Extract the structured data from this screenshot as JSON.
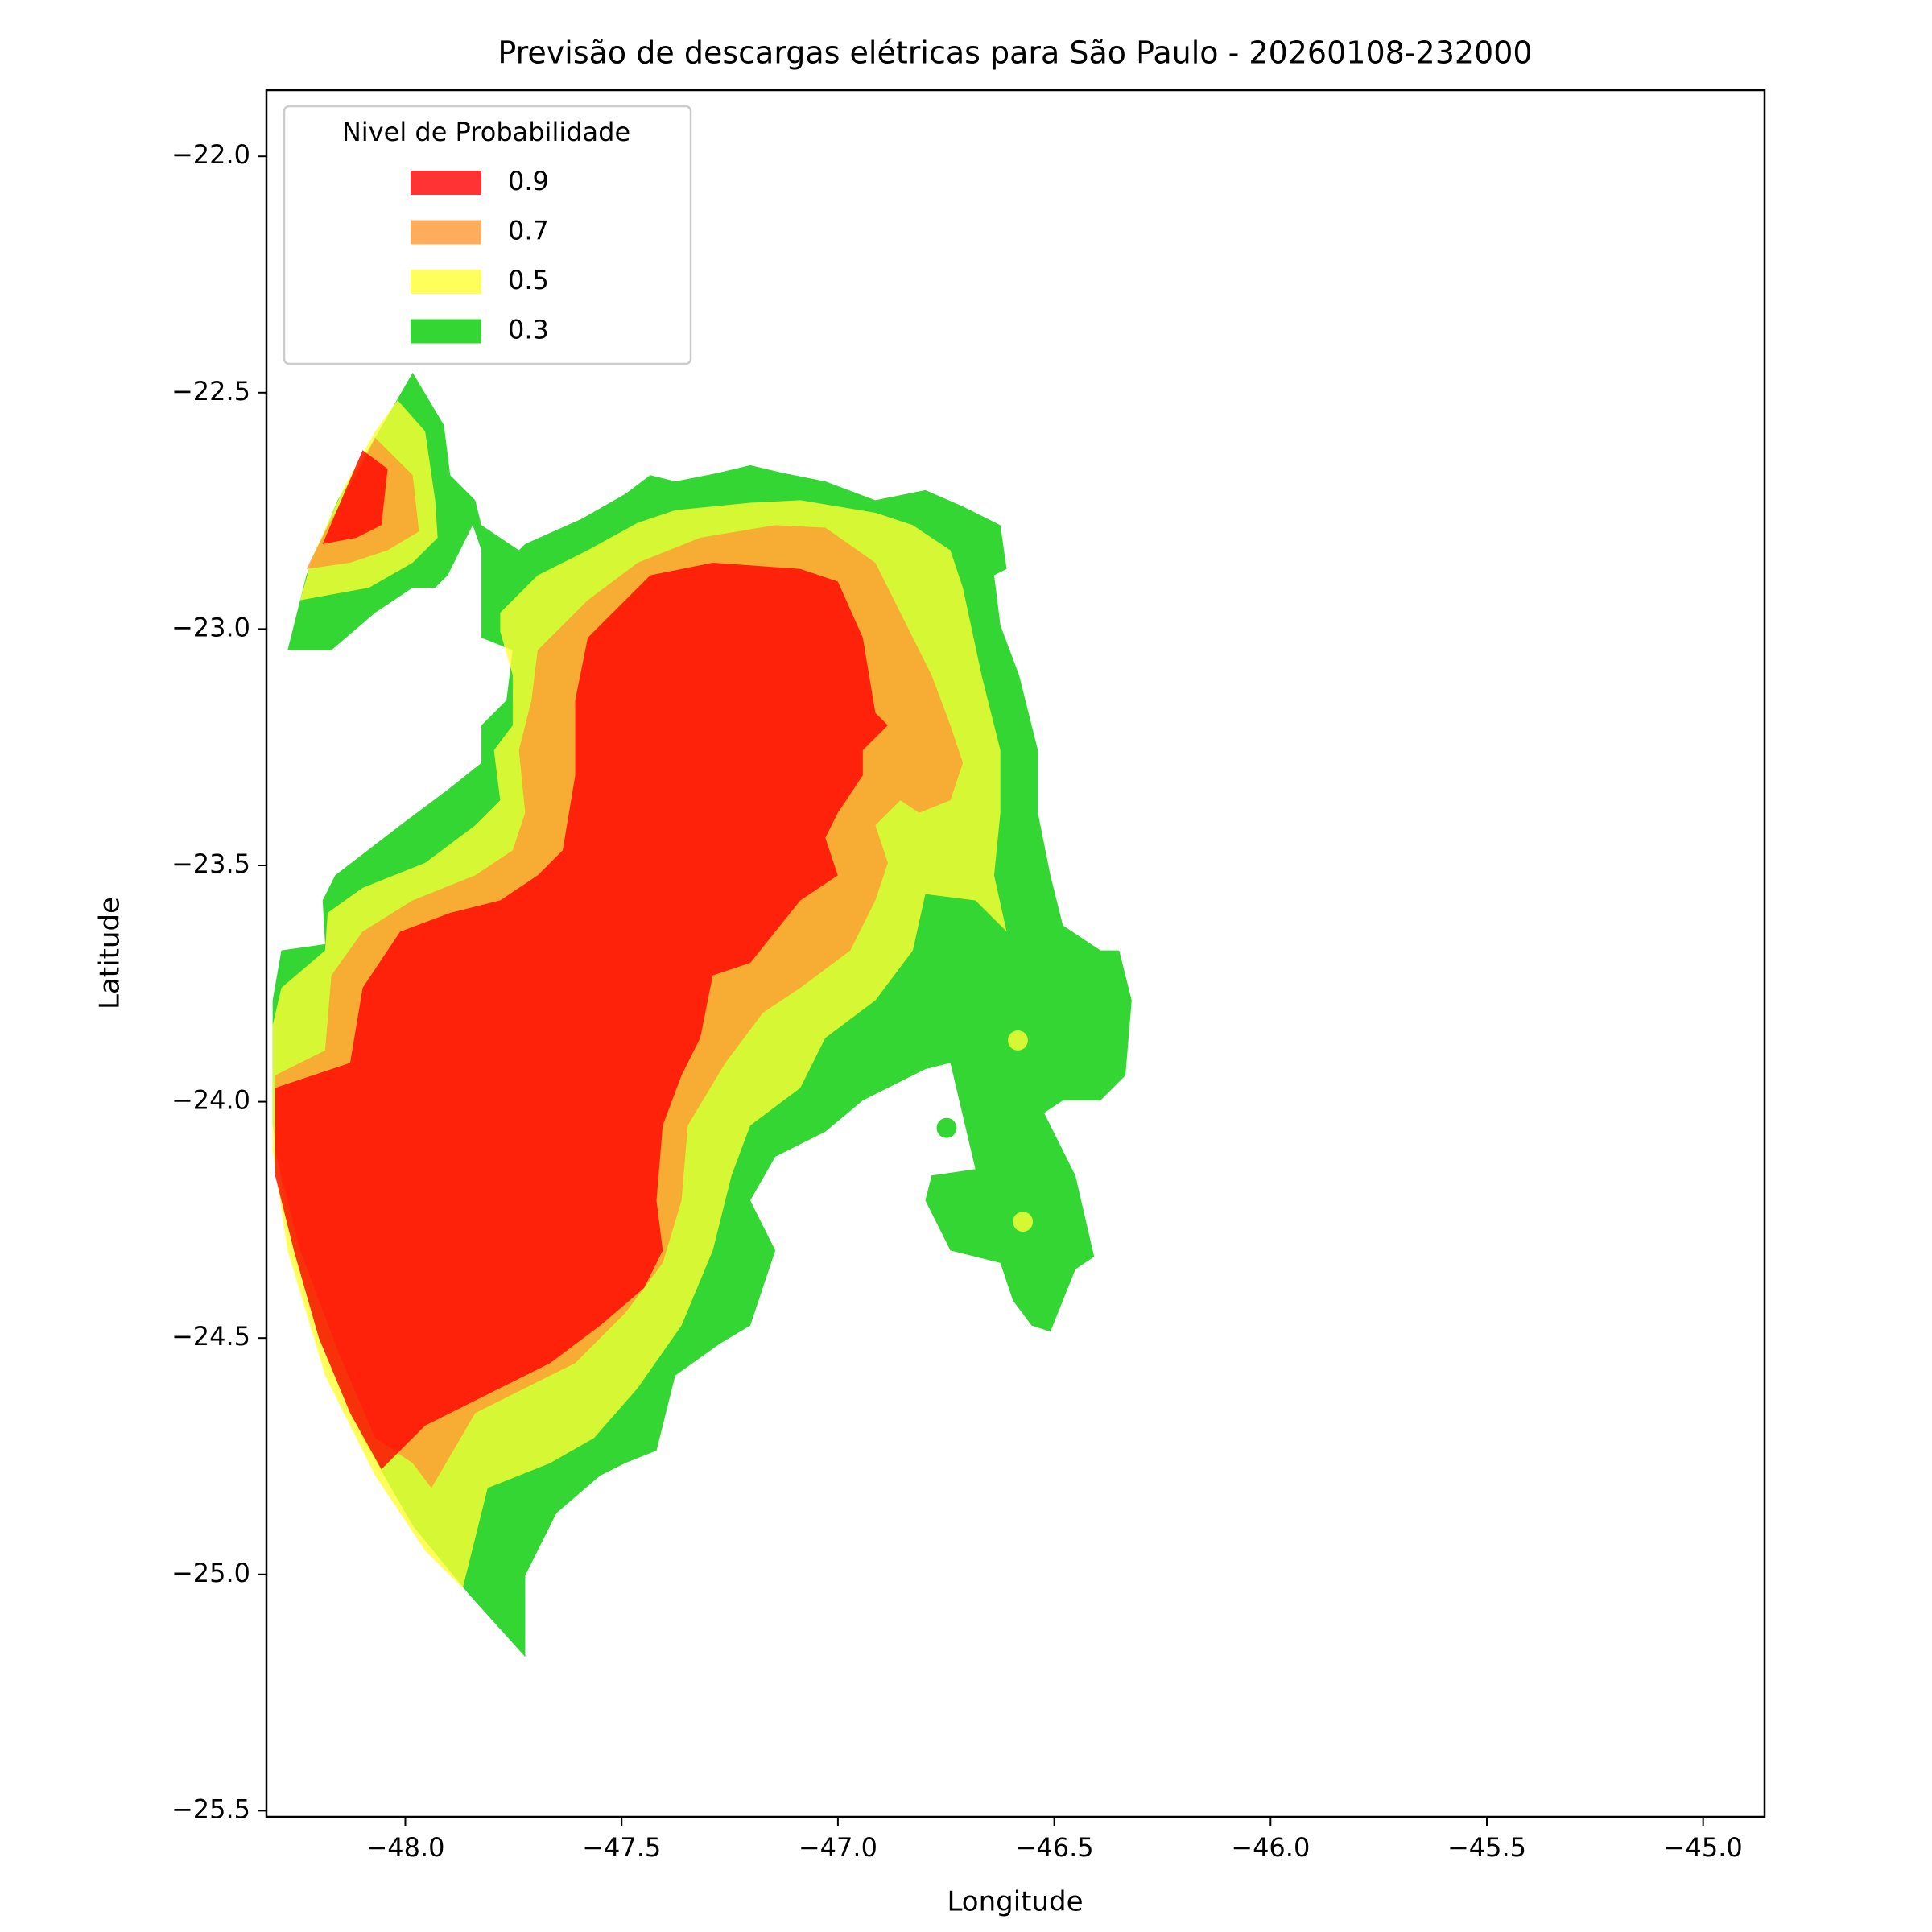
{
  "chart_data": {
    "type": "contour",
    "title": "Previsão de descargas elétricas para São Paulo - 20260108-232000",
    "x_label": "Longitude",
    "y_label": "Latitude",
    "xlim": [
      -48.321,
      -44.858
    ],
    "ylim": [
      -25.513,
      -21.86
    ],
    "xticks": [
      {
        "value": -48.0,
        "label": "−48.0"
      },
      {
        "value": -47.5,
        "label": "−47.5"
      },
      {
        "value": -47.0,
        "label": "−47.0"
      },
      {
        "value": -46.5,
        "label": "−46.5"
      },
      {
        "value": -46.0,
        "label": "−46.0"
      },
      {
        "value": -45.5,
        "label": "−45.5"
      },
      {
        "value": -45.0,
        "label": "−45.0"
      }
    ],
    "yticks": [
      {
        "value": -22.0,
        "label": "−22.0"
      },
      {
        "value": -22.5,
        "label": "−22.5"
      },
      {
        "value": -23.0,
        "label": "−23.0"
      },
      {
        "value": -23.5,
        "label": "−23.5"
      },
      {
        "value": -24.0,
        "label": "−24.0"
      },
      {
        "value": -24.5,
        "label": "−24.5"
      },
      {
        "value": -25.0,
        "label": "−25.0"
      },
      {
        "value": -25.5,
        "label": "−25.5"
      }
    ],
    "legend_title": "Nivel de Probabilidade",
    "levels": [
      0.9,
      0.7,
      0.5,
      0.3
    ],
    "colors": [
      "#ff0000",
      "#ff9933",
      "#ffff33",
      "#00cc00"
    ],
    "legend_position": "upper left"
  }
}
